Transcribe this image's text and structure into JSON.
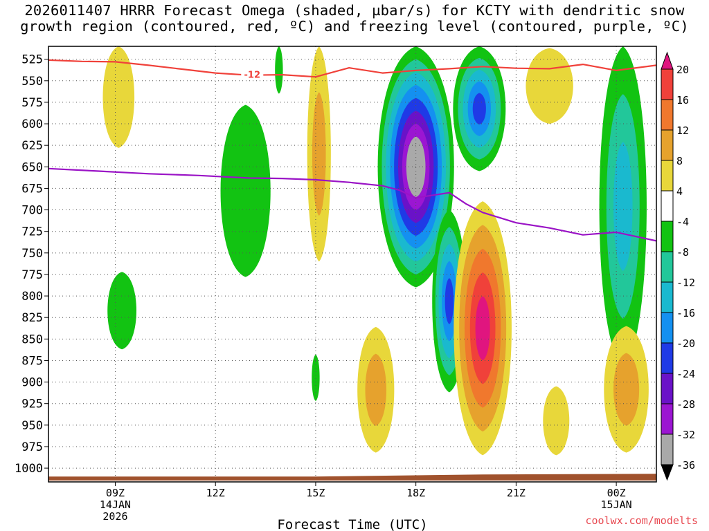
{
  "title": {
    "line1": "2026011407 HRRR Forecast Omega (shaded, µbar/s) for KCTY with dendritic snow",
    "line2": "growth region (contoured, red, ºC) and freezing level (contoured, purple, ºC)"
  },
  "credit": "coolwx.com/modelts",
  "colors": {
    "dgz_line": "#f0413a",
    "freezing_line": "#9a13c6",
    "ground": "#a0522d",
    "scale": {
      "pos_20_inf": "#e0157f",
      "pos_16_20": "#f0413a",
      "pos_12_16": "#f0782d",
      "pos_8_12": "#e6a22d",
      "pos_4_8": "#e8d73a",
      "neu": "#ffffff",
      "neg_4_8": "#12c312",
      "neg_8_12": "#22c79a",
      "neg_12_16": "#1ab9cf",
      "neg_16_20": "#1490f0",
      "neg_20_24": "#1f3ae6",
      "neg_24_28": "#6a12c8",
      "neg_28_32": "#9b16d2",
      "neg_32_36": "#a9a9a9",
      "neg_lt_36": "#000000"
    }
  },
  "chart_data": {
    "type": "heatmap",
    "title": "2026011407 HRRR Forecast Omega (shaded, µbar/s) for KCTY with dendritic snow growth region (contoured, red, ºC) and freezing level (contoured, purple, ºC)",
    "xlabel": "Forecast Time (UTC)",
    "ylabel": "",
    "x_hours_range": [
      7.0,
      25.2
    ],
    "x_ticks": [
      {
        "hour": 9,
        "label": "09Z",
        "sub": [
          "14JAN",
          "2026"
        ]
      },
      {
        "hour": 12,
        "label": "12Z",
        "sub": []
      },
      {
        "hour": 15,
        "label": "15Z",
        "sub": []
      },
      {
        "hour": 18,
        "label": "18Z",
        "sub": []
      },
      {
        "hour": 21,
        "label": "21Z",
        "sub": []
      },
      {
        "hour": 24,
        "label": "00Z",
        "sub": [
          "15JAN"
        ]
      }
    ],
    "y_levels": [
      525,
      550,
      575,
      600,
      625,
      650,
      675,
      700,
      725,
      750,
      775,
      800,
      825,
      850,
      875,
      900,
      925,
      950,
      975,
      1000
    ],
    "y_range_hpa": [
      510,
      1016
    ],
    "surface_pressure_hpa": 1009,
    "colorbar": {
      "labels": [
        "20",
        "16",
        "12",
        "8",
        "4",
        "-4",
        "-8",
        "-12",
        "-16",
        "-20",
        "-24",
        "-28",
        "-32",
        "-36"
      ],
      "bins": [
        {
          "from": 20,
          "to": 24,
          "key": "pos_20_inf"
        },
        {
          "from": 16,
          "to": 20,
          "key": "pos_16_20"
        },
        {
          "from": 12,
          "to": 16,
          "key": "pos_12_16"
        },
        {
          "from": 8,
          "to": 12,
          "key": "pos_8_12"
        },
        {
          "from": 4,
          "to": 8,
          "key": "pos_4_8"
        },
        {
          "from": -4,
          "to": 4,
          "key": "neu"
        },
        {
          "from": -8,
          "to": -4,
          "key": "neg_4_8"
        },
        {
          "from": -12,
          "to": -8,
          "key": "neg_8_12"
        },
        {
          "from": -16,
          "to": -12,
          "key": "neg_12_16"
        },
        {
          "from": -20,
          "to": -16,
          "key": "neg_16_20"
        },
        {
          "from": -24,
          "to": -20,
          "key": "neg_20_24"
        },
        {
          "from": -28,
          "to": -24,
          "key": "neg_24_28"
        },
        {
          "from": -32,
          "to": -28,
          "key": "neg_28_32"
        },
        {
          "from": -36,
          "to": -32,
          "key": "neg_32_36"
        }
      ]
    },
    "omega_features": [
      {
        "name": "upper-9z",
        "hour": 9.1,
        "top_hpa": 510,
        "bottom_hpa": 628,
        "half_width_h": 0.6,
        "bands": [
          4
        ]
      },
      {
        "name": "left-low",
        "hour": 9.2,
        "top_hpa": 772,
        "bottom_hpa": 862,
        "half_width_h": 0.55,
        "bands": [
          -4
        ]
      },
      {
        "name": "green-12z-13z",
        "hour": 12.9,
        "top_hpa": 578,
        "bottom_hpa": 778,
        "half_width_h": 0.95,
        "bands": [
          -4
        ]
      },
      {
        "name": "green-14z-small",
        "hour": 13.9,
        "top_hpa": 510,
        "bottom_hpa": 565,
        "half_width_h": 0.15,
        "bands": [
          -4
        ]
      },
      {
        "name": "yellow-15z",
        "hour": 15.1,
        "top_hpa": 510,
        "bottom_hpa": 760,
        "half_width_h": 0.45,
        "bands": [
          4,
          8
        ]
      },
      {
        "name": "green-15z-low",
        "hour": 15.0,
        "top_hpa": 868,
        "bottom_hpa": 922,
        "half_width_h": 0.15,
        "bands": [
          -4
        ]
      },
      {
        "name": "main-18z",
        "hour": 18.0,
        "top_hpa": 510,
        "bottom_hpa": 790,
        "half_width_h": 1.45,
        "bands": [
          -4,
          -8,
          -12,
          -16,
          -20,
          -24,
          -28,
          -32,
          -36
        ]
      },
      {
        "name": "secondary-19z",
        "hour": 19.0,
        "top_hpa": 700,
        "bottom_hpa": 912,
        "half_width_h": 0.65,
        "bands": [
          -4,
          -8,
          -12,
          -16,
          -20
        ]
      },
      {
        "name": "upper-20z",
        "hour": 19.9,
        "top_hpa": 510,
        "bottom_hpa": 655,
        "half_width_h": 1.0,
        "bands": [
          -4,
          -8,
          -12,
          -16,
          -20
        ]
      },
      {
        "name": "pos-20z",
        "hour": 20.0,
        "top_hpa": 690,
        "bottom_hpa": 985,
        "half_width_h": 1.1,
        "bands": [
          4,
          8,
          12,
          16,
          20
        ]
      },
      {
        "name": "pos-17z-low",
        "hour": 16.8,
        "top_hpa": 836,
        "bottom_hpa": 982,
        "half_width_h": 0.7,
        "bands": [
          4,
          8
        ]
      },
      {
        "name": "yellow-22z",
        "hour": 22.0,
        "top_hpa": 512,
        "bottom_hpa": 600,
        "half_width_h": 0.9,
        "bands": [
          4
        ]
      },
      {
        "name": "yellow-22z-low",
        "hour": 22.2,
        "top_hpa": 905,
        "bottom_hpa": 985,
        "half_width_h": 0.5,
        "bands": [
          4
        ]
      },
      {
        "name": "green-00z",
        "hour": 24.2,
        "top_hpa": 510,
        "bottom_hpa": 882,
        "half_width_h": 0.9,
        "bands": [
          -4,
          -8,
          -12
        ]
      },
      {
        "name": "yellow-00z-low",
        "hour": 24.3,
        "top_hpa": 835,
        "bottom_hpa": 982,
        "half_width_h": 0.85,
        "bands": [
          4,
          8
        ]
      }
    ],
    "series": [
      {
        "name": "dendritic snow growth (-12 ºC)",
        "label": "-12",
        "points": [
          [
            7.0,
            526
          ],
          [
            8.0,
            527.5
          ],
          [
            9.0,
            528
          ],
          [
            10.0,
            532
          ],
          [
            11.0,
            536.5
          ],
          [
            12.0,
            541
          ],
          [
            13.0,
            543.5
          ],
          [
            14.0,
            543
          ],
          [
            15.0,
            545.5
          ],
          [
            16.0,
            535
          ],
          [
            17.0,
            541
          ],
          [
            18.0,
            538
          ],
          [
            19.0,
            536
          ],
          [
            20.0,
            533.5
          ],
          [
            21.0,
            535.5
          ],
          [
            22.0,
            536
          ],
          [
            23.0,
            531
          ],
          [
            24.0,
            538
          ],
          [
            25.2,
            532
          ]
        ]
      },
      {
        "name": "freezing level (0 ºC)",
        "label": "",
        "points": [
          [
            7.0,
            652
          ],
          [
            8.5,
            655
          ],
          [
            10.0,
            658
          ],
          [
            11.5,
            660
          ],
          [
            13.0,
            663
          ],
          [
            14.0,
            663.5
          ],
          [
            15.0,
            665
          ],
          [
            16.0,
            668
          ],
          [
            17.0,
            672
          ],
          [
            17.5,
            677
          ],
          [
            18.0,
            686
          ],
          [
            19.0,
            680
          ],
          [
            19.5,
            693
          ],
          [
            20.0,
            703
          ],
          [
            21.0,
            715
          ],
          [
            22.0,
            721
          ],
          [
            23.0,
            729
          ],
          [
            24.0,
            726
          ],
          [
            25.2,
            736
          ]
        ]
      }
    ]
  },
  "axis": {
    "xlabel": "Forecast Time (UTC)",
    "dgz_label": "-12"
  }
}
